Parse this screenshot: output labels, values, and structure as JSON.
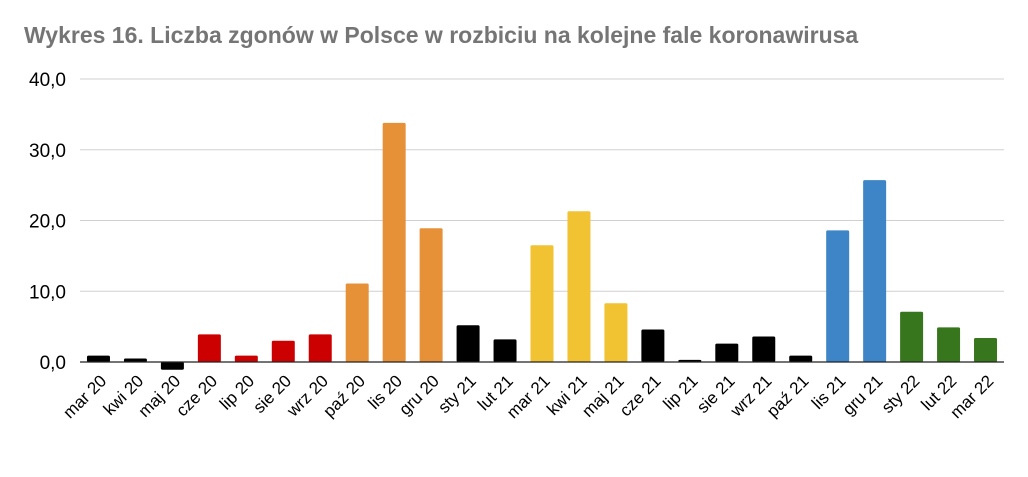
{
  "chart_data": {
    "type": "bar",
    "title": "Wykres 16. Liczba zgonów w Polsce w rozbiciu na kolejne fale koronawirusa",
    "xlabel": "",
    "ylabel": "",
    "ylim": [
      0,
      40
    ],
    "yticks": [
      "0,0",
      "10,0",
      "20,0",
      "30,0",
      "40,0"
    ],
    "ytick_values": [
      0,
      10,
      20,
      30,
      40
    ],
    "grid": true,
    "legend": "none",
    "categories": [
      "mar 20",
      "kwi 20",
      "maj 20",
      "cze 20",
      "lip 20",
      "sie 20",
      "wrz 20",
      "paź 20",
      "lis 20",
      "gru 20",
      "sty 21",
      "lut 21",
      "mar 21",
      "kwi 21",
      "maj 21",
      "cze 21",
      "lip 21",
      "sie 21",
      "wrz 21",
      "paź 21",
      "lis 21",
      "gru 21",
      "sty 22",
      "lut 22",
      "mar 22"
    ],
    "values": [
      0.9,
      0.5,
      -1.1,
      3.9,
      0.9,
      3.0,
      3.9,
      11.1,
      33.8,
      18.9,
      5.2,
      3.2,
      16.5,
      21.3,
      8.3,
      4.6,
      0.3,
      2.6,
      3.6,
      0.9,
      18.6,
      25.7,
      7.1,
      4.9,
      3.4
    ],
    "bar_colors": [
      "#000000",
      "#000000",
      "#000000",
      "#cc0000",
      "#cc0000",
      "#cc0000",
      "#cc0000",
      "#e69138",
      "#e69138",
      "#e69138",
      "#000000",
      "#000000",
      "#f1c232",
      "#f1c232",
      "#f1c232",
      "#000000",
      "#000000",
      "#000000",
      "#000000",
      "#000000",
      "#3d85c6",
      "#3d85c6",
      "#38761d",
      "#38761d",
      "#38761d"
    ],
    "colors": {
      "grid": "#d0d0d0",
      "axis": "#222222",
      "title": "#757575"
    }
  }
}
